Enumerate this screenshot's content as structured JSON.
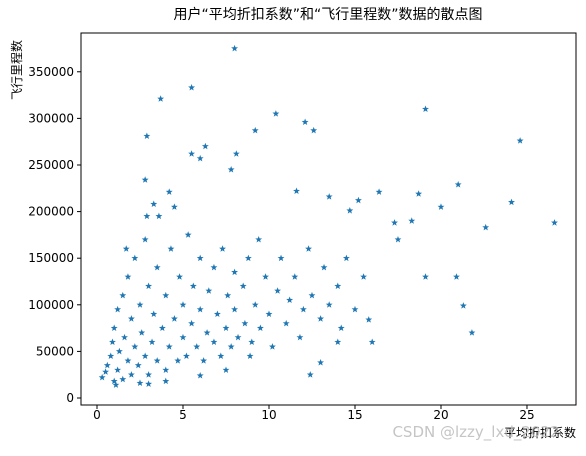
{
  "chart_data": {
    "type": "scatter",
    "title": "用户“平均折扣系数”和“飞行里程数”数据的散点图",
    "xlabel": "平均折扣系数",
    "ylabel": "飞行里程数",
    "watermark": "CSDN @lzzy_lxd_2022",
    "color": "#1f77b4",
    "marker": "star",
    "xlim": [
      -0.93,
      27.85
    ],
    "ylim": [
      -7500,
      391600
    ],
    "xticks": [
      0,
      5,
      10,
      15,
      20,
      25
    ],
    "yticks": [
      0,
      50000,
      100000,
      150000,
      200000,
      250000,
      300000,
      350000
    ],
    "x": [
      8.0,
      5.5,
      3.7,
      10.4,
      19.1,
      12.1,
      2.9,
      9.2,
      12.6,
      24.6,
      6.3,
      8.1,
      5.5,
      6.0,
      7.8,
      2.8,
      4.2,
      11.6,
      16.4,
      21.0,
      18.7,
      24.1,
      26.6,
      20.0,
      22.6,
      13.5,
      15.2,
      14.7,
      17.3,
      18.3,
      17.5,
      19.1,
      20.9,
      21.3,
      21.8,
      12.4,
      13.0,
      14.0,
      16.0,
      15.8,
      8.9,
      0.3,
      0.5,
      0.6,
      0.8,
      0.9,
      1.0,
      1.0,
      1.2,
      1.2,
      1.3,
      1.5,
      1.5,
      1.6,
      1.8,
      1.8,
      2.0,
      2.0,
      2.2,
      2.2,
      2.4,
      2.5,
      2.6,
      2.8,
      2.8,
      3.0,
      3.0,
      3.2,
      3.3,
      3.5,
      3.5,
      3.6,
      3.8,
      4.0,
      4.0,
      4.2,
      4.3,
      4.5,
      4.7,
      4.8,
      5.0,
      5.0,
      5.2,
      5.3,
      5.5,
      5.6,
      5.8,
      6.0,
      6.0,
      6.2,
      6.4,
      6.5,
      6.8,
      6.8,
      7.0,
      7.2,
      7.3,
      7.5,
      7.6,
      7.8,
      8.0,
      8.0,
      8.2,
      8.5,
      8.6,
      8.8,
      9.0,
      9.2,
      9.4,
      9.5,
      9.8,
      10.0,
      10.2,
      10.5,
      10.7,
      11.0,
      11.2,
      11.5,
      11.8,
      12.0,
      12.3,
      12.5,
      13.0,
      13.2,
      13.5,
      14.0,
      14.2,
      14.5,
      15.0,
      15.5,
      1.1,
      2.5,
      4.0,
      6.0,
      7.5,
      3.0,
      1.7,
      2.9,
      4.5,
      3.3
    ],
    "values": [
      375000,
      333000,
      321000,
      305000,
      310000,
      296000,
      281000,
      287000,
      287000,
      276000,
      270000,
      262000,
      262000,
      257000,
      245000,
      234000,
      221000,
      222000,
      221000,
      229000,
      219000,
      210000,
      188000,
      205000,
      183000,
      216000,
      212000,
      201000,
      188000,
      190000,
      170000,
      130000,
      130000,
      99000,
      70000,
      25000,
      38000,
      60000,
      60000,
      84000,
      45000,
      22000,
      28000,
      35000,
      45000,
      60000,
      18000,
      75000,
      30000,
      95000,
      50000,
      20000,
      110000,
      65000,
      40000,
      130000,
      25000,
      85000,
      55000,
      150000,
      35000,
      100000,
      70000,
      45000,
      170000,
      25000,
      120000,
      60000,
      90000,
      40000,
      140000,
      195000,
      75000,
      30000,
      110000,
      55000,
      160000,
      85000,
      40000,
      130000,
      65000,
      100000,
      45000,
      175000,
      80000,
      120000,
      55000,
      95000,
      150000,
      40000,
      70000,
      115000,
      60000,
      140000,
      90000,
      45000,
      160000,
      75000,
      110000,
      55000,
      95000,
      135000,
      65000,
      120000,
      80000,
      150000,
      60000,
      100000,
      170000,
      75000,
      130000,
      90000,
      55000,
      115000,
      150000,
      80000,
      105000,
      130000,
      65000,
      95000,
      160000,
      110000,
      85000,
      140000,
      100000,
      120000,
      75000,
      150000,
      95000,
      130000,
      14000,
      16000,
      18000,
      24000,
      30000,
      15000,
      160000,
      195000,
      205000,
      208000
    ]
  }
}
